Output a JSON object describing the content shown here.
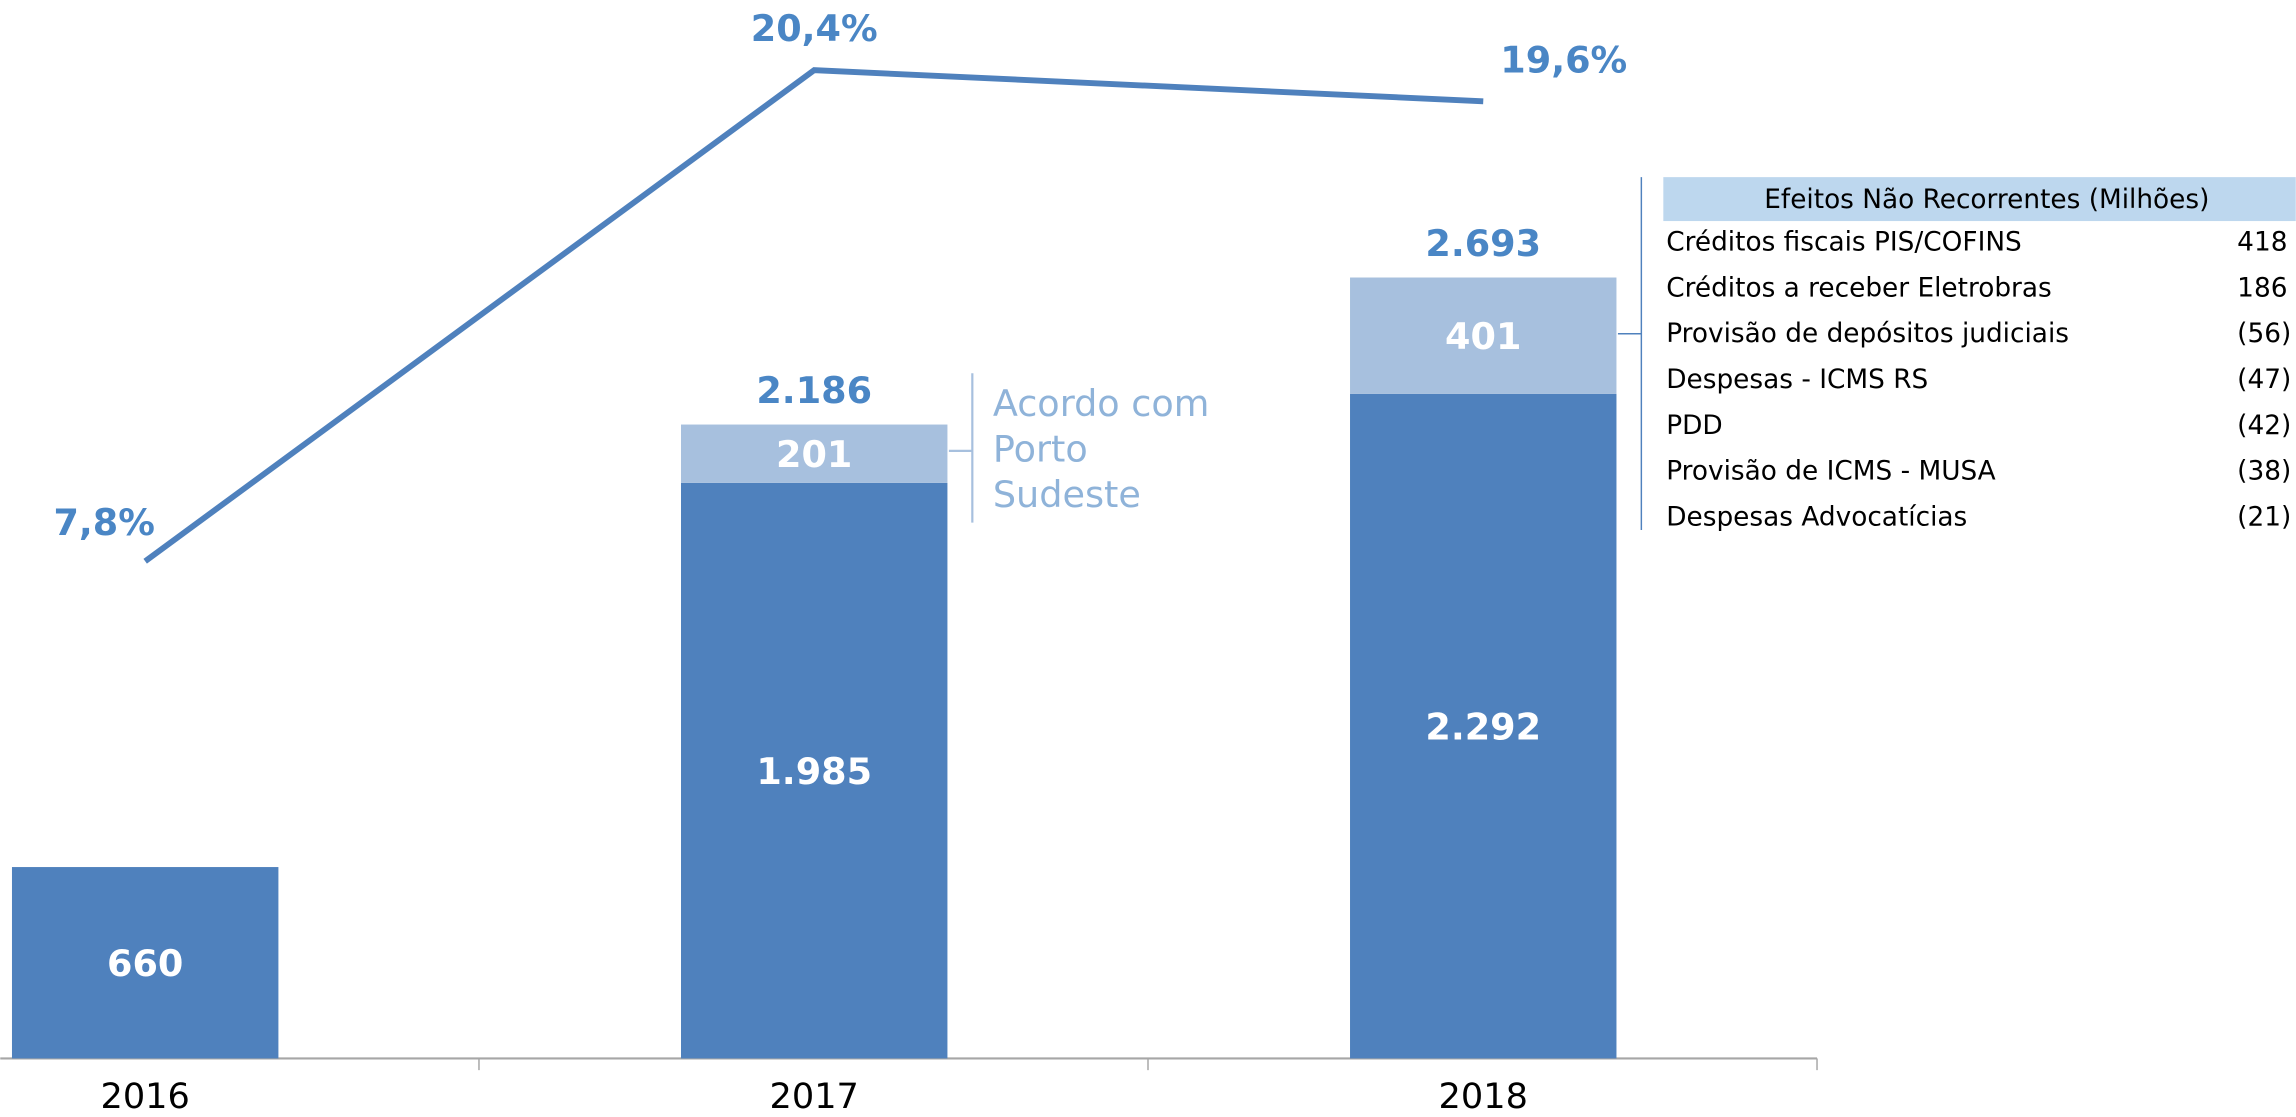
{
  "chart_data": {
    "type": "bar",
    "categories": [
      "2016",
      "2017",
      "2018"
    ],
    "series": [
      {
        "name": null,
        "color": "#4f81bd",
        "values": [
          660,
          1985,
          2292
        ],
        "value_labels": [
          "660",
          "1.985",
          "2.292"
        ]
      },
      {
        "name": null,
        "color": "#a7c0de",
        "values": [
          null,
          201,
          401
        ],
        "value_labels": [
          null,
          "201",
          "401"
        ]
      }
    ],
    "totals": {
      "values": [
        null,
        2186,
        2693
      ],
      "value_labels": [
        null,
        "2.186",
        "2.693"
      ]
    },
    "line": {
      "type": "line",
      "axis": "y2",
      "color": "#4f81bd",
      "values": [
        7.8,
        20.4,
        19.6
      ],
      "value_labels": [
        "7,8%",
        "20,4%",
        "19,6%"
      ]
    },
    "ylim": [
      0,
      3650
    ],
    "y2lim": [
      0,
      22.2
    ],
    "annotation": [
      "Acordo com",
      "Porto",
      "Sudeste"
    ],
    "table": {
      "title": "Efeitos Não Recorrentes (Milhões)",
      "rows": [
        {
          "label": "Créditos fiscais PIS/COFINS",
          "value": 418,
          "value_label": "418"
        },
        {
          "label": "Créditos a receber Eletrobras",
          "value": 186,
          "value_label": "186"
        },
        {
          "label": "Provisão de depósitos judiciais",
          "value": -56,
          "value_label": "(56)"
        },
        {
          "label": "Despesas - ICMS RS",
          "value": -47,
          "value_label": "(47)"
        },
        {
          "label": "PDD",
          "value": -42,
          "value_label": "(42)"
        },
        {
          "label": "Provisão de ICMS - MUSA",
          "value": -38,
          "value_label": "(38)"
        },
        {
          "label": "Despesas Advocatícias",
          "value": -21,
          "value_label": "(21)"
        }
      ]
    }
  }
}
